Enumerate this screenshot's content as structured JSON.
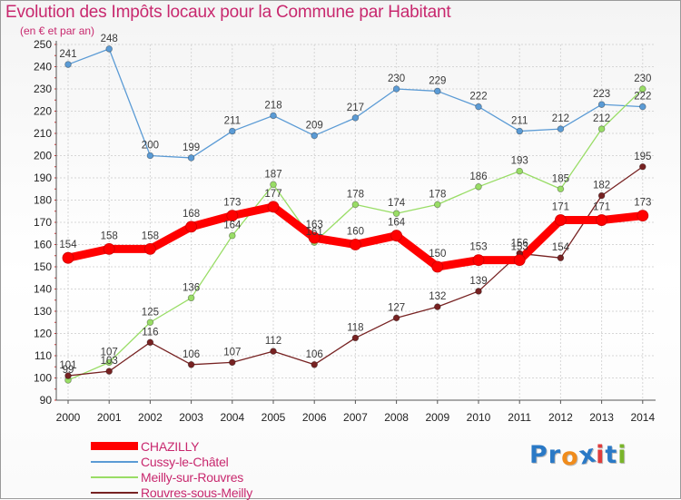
{
  "header": {
    "title": "Evolution des Impôts locaux pour la Commune par Habitant",
    "subtitle": "(en € et par an)"
  },
  "brand": {
    "name": "Proxiti",
    "letters": [
      "P",
      "r",
      "o",
      "x",
      "i",
      "t",
      "i"
    ],
    "letter_colors": [
      "#2a79c6",
      "#2a79c6",
      "#f08c1c",
      "#2a79c6",
      "#e03c3c",
      "#2a79c6",
      "#7ab52a"
    ]
  },
  "chart_data": {
    "type": "line",
    "title": "Evolution des Impôts locaux pour la Commune par Habitant",
    "subtitle": "(en € et par an)",
    "xlabel": "",
    "ylabel": "",
    "categories": [
      "2000",
      "2001",
      "2002",
      "2003",
      "2004",
      "2005",
      "2006",
      "2007",
      "2008",
      "2009",
      "2010",
      "2011",
      "2012",
      "2013",
      "2014"
    ],
    "ylim": [
      90,
      250
    ],
    "yticks": [
      90,
      100,
      110,
      120,
      130,
      140,
      150,
      160,
      170,
      180,
      190,
      200,
      210,
      220,
      230,
      240,
      250
    ],
    "grid": true,
    "legend_position": "bottom-left",
    "series": [
      {
        "name": "CHAZILLY",
        "color": "#ff0000",
        "emphasis": true,
        "values": [
          154,
          158,
          158,
          168,
          173,
          177,
          163,
          160,
          164,
          150,
          153,
          153,
          171,
          171,
          173
        ],
        "labels": [
          "154",
          "158",
          "158",
          "168",
          "173",
          "177",
          "163",
          "160",
          "164",
          "150",
          "153",
          "153",
          "171",
          "171",
          "173"
        ]
      },
      {
        "name": "Cussy-le-Châtel",
        "color": "#5b9bd5",
        "emphasis": false,
        "values": [
          241,
          248,
          200,
          199,
          211,
          218,
          209,
          217,
          230,
          229,
          222,
          211,
          212,
          223,
          222
        ],
        "labels": [
          "241",
          "248",
          "200",
          "199",
          "211",
          "218",
          "209",
          "217",
          "230",
          "229",
          "222",
          "211",
          "212",
          "223",
          "222"
        ]
      },
      {
        "name": "Meilly-sur-Rouvres",
        "color": "#99dd66",
        "emphasis": false,
        "values": [
          99,
          107,
          125,
          136,
          164,
          187,
          161,
          178,
          174,
          178,
          186,
          193,
          185,
          212,
          230
        ],
        "labels": [
          "99",
          "107",
          "125",
          "136",
          "164",
          "187",
          "161",
          "178",
          "174",
          "178",
          "186",
          "193",
          "185",
          "212",
          "230"
        ]
      },
      {
        "name": "Rouvres-sous-Meilly",
        "color": "#772222",
        "emphasis": false,
        "values": [
          101,
          103,
          116,
          106,
          107,
          112,
          106,
          118,
          127,
          132,
          139,
          156,
          154,
          182,
          195
        ],
        "labels": [
          "101",
          "103",
          "116",
          "106",
          "107",
          "112",
          "106",
          "118",
          "127",
          "132",
          "139",
          "156",
          "154",
          "182",
          "195"
        ]
      }
    ]
  }
}
